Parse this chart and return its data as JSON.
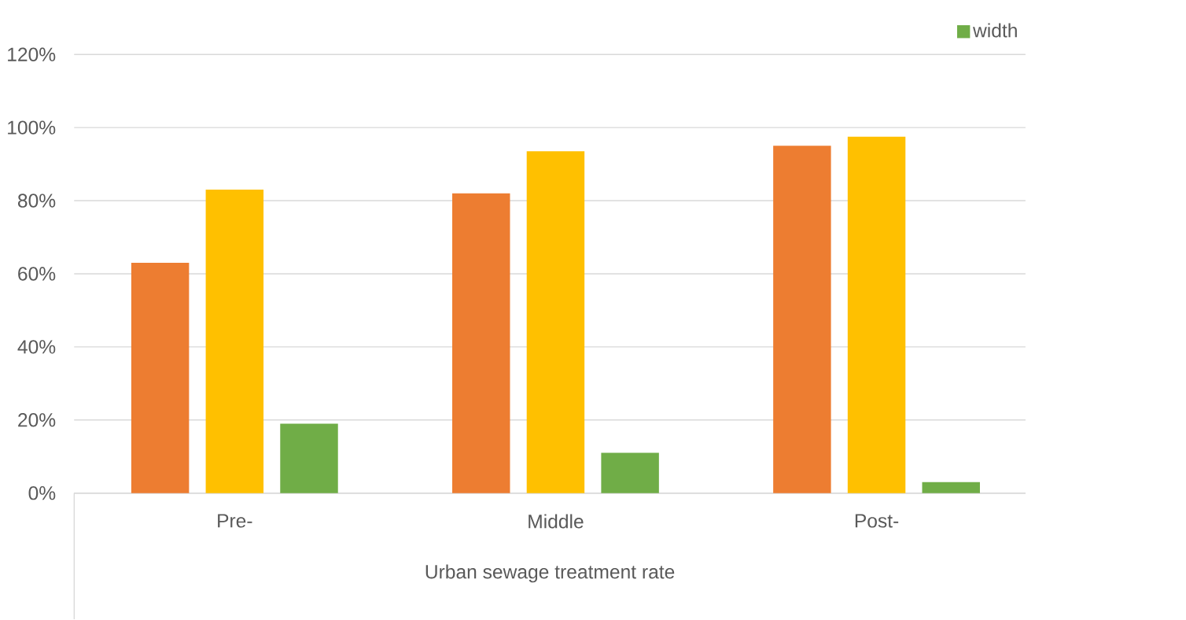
{
  "chart_data": {
    "type": "bar",
    "xlabel": "Urban sewage treatment rate",
    "categories": [
      "Pre-",
      "Middle",
      "Post-"
    ],
    "series": [
      {
        "color": "#ed7d31",
        "values": [
          63,
          82,
          95
        ]
      },
      {
        "color": "#ffc000",
        "values": [
          83,
          93.5,
          97.5
        ]
      },
      {
        "name": "width",
        "color": "#70ad47",
        "values": [
          19,
          11,
          3
        ]
      }
    ],
    "ylim": [
      0,
      120
    ],
    "yticks": [
      {
        "value": 0,
        "label": "0%"
      },
      {
        "value": 20,
        "label": "20%"
      },
      {
        "value": 40,
        "label": "40%"
      },
      {
        "value": 60,
        "label": "60%"
      },
      {
        "value": 80,
        "label": "80%"
      },
      {
        "value": 100,
        "label": "100%"
      },
      {
        "value": 120,
        "label": "120%"
      }
    ],
    "grid": "y",
    "legend": "top right"
  }
}
